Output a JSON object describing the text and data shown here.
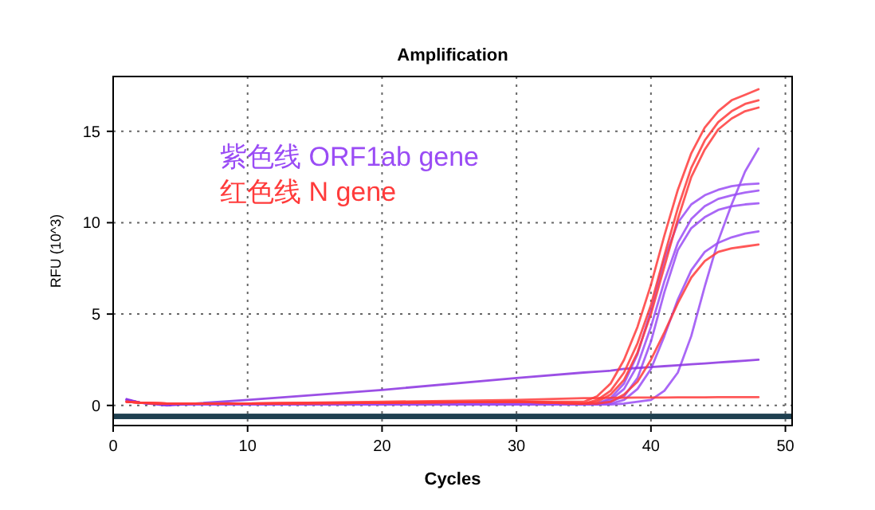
{
  "chart_data": {
    "type": "line",
    "title": "Amplification",
    "xlabel": "Cycles",
    "ylabel": "RFU (10^3)",
    "xlim": [
      0,
      50.5
    ],
    "ylim": [
      -1.1,
      18
    ],
    "xticks": [
      0,
      10,
      20,
      30,
      40,
      50
    ],
    "yticks": [
      0,
      5,
      10,
      15
    ],
    "grid": true,
    "marker": "none",
    "line_style": "solid",
    "legend": "top left",
    "x": [
      1,
      2,
      4,
      10,
      20,
      30,
      35,
      36,
      37,
      38,
      39,
      40,
      41,
      42,
      43,
      44,
      45,
      46,
      47,
      48
    ],
    "bands": [
      {
        "axis": "y",
        "from": -0.75,
        "to": -0.45,
        "color": "#1f4050"
      }
    ],
    "series": [
      {
        "name": "紫色线 ORF1ab gene",
        "color": "#9a4cf5",
        "values": [
          0.3,
          0.15,
          0.05,
          0.05,
          0.05,
          0.05,
          0.05,
          0.1,
          0.4,
          1.2,
          2.8,
          5.2,
          8.0,
          10.0,
          11.0,
          11.5,
          11.8,
          12.0,
          12.1,
          12.14
        ]
      },
      {
        "color": "#9a4cf5",
        "values": [
          0.3,
          0.15,
          0.05,
          0.05,
          0.05,
          0.05,
          0.05,
          0.1,
          0.3,
          0.9,
          2.2,
          4.3,
          6.8,
          8.9,
          10.2,
          10.9,
          11.3,
          11.5,
          11.65,
          11.76
        ]
      },
      {
        "color": "#9a4cf5",
        "values": [
          0.3,
          0.15,
          0.05,
          0.05,
          0.05,
          0.05,
          0.05,
          0.05,
          0.2,
          0.5,
          1.5,
          3.5,
          6.2,
          8.5,
          9.7,
          10.3,
          10.7,
          10.9,
          11.0,
          11.06
        ]
      },
      {
        "color": "#9a4cf5",
        "values": [
          0.3,
          0.15,
          0.05,
          0.05,
          0.05,
          0.05,
          0.05,
          0.05,
          0.1,
          0.3,
          0.9,
          2.0,
          3.8,
          5.8,
          7.4,
          8.4,
          8.9,
          9.2,
          9.4,
          9.52
        ]
      },
      {
        "color": "#9a4cf5",
        "values": [
          0.3,
          0.15,
          0.05,
          0.05,
          0.05,
          0.05,
          0.05,
          0.05,
          0.05,
          0.1,
          0.2,
          0.3,
          0.8,
          1.8,
          3.8,
          6.5,
          9.0,
          11.0,
          12.8,
          14.06
        ]
      },
      {
        "color": "#8a30e0",
        "values": [
          0.35,
          0.15,
          0.0,
          0.3,
          0.85,
          1.5,
          1.8,
          1.85,
          1.9,
          2.0,
          2.05,
          2.1,
          2.15,
          2.2,
          2.25,
          2.3,
          2.35,
          2.4,
          2.45,
          2.5
        ]
      },
      {
        "name": "红色线 N gene",
        "color": "#ff3b3b",
        "values": [
          0.2,
          0.15,
          0.1,
          0.1,
          0.15,
          0.2,
          0.2,
          0.5,
          1.2,
          2.5,
          4.3,
          6.6,
          9.3,
          11.8,
          13.8,
          15.2,
          16.1,
          16.7,
          17.0,
          17.3
        ]
      },
      {
        "color": "#ff3b3b",
        "values": [
          0.2,
          0.15,
          0.1,
          0.1,
          0.15,
          0.2,
          0.1,
          0.3,
          0.8,
          1.8,
          3.4,
          5.5,
          8.2,
          10.8,
          13.0,
          14.5,
          15.5,
          16.1,
          16.5,
          16.7
        ]
      },
      {
        "color": "#ff3b3b",
        "values": [
          0.2,
          0.15,
          0.1,
          0.1,
          0.15,
          0.2,
          0.1,
          0.2,
          0.6,
          1.4,
          2.9,
          5.0,
          7.6,
          10.2,
          12.5,
          14.0,
          15.1,
          15.7,
          16.1,
          16.3
        ]
      },
      {
        "color": "#ff3b3b",
        "values": [
          0.2,
          0.15,
          0.1,
          0.1,
          0.15,
          0.2,
          0.1,
          0.1,
          0.2,
          0.6,
          1.3,
          2.5,
          4.0,
          5.6,
          7.0,
          7.9,
          8.4,
          8.6,
          8.7,
          8.8
        ]
      },
      {
        "color": "#ff3b3b",
        "values": [
          0.2,
          0.15,
          0.1,
          0.1,
          0.2,
          0.3,
          0.4,
          0.4,
          0.42,
          0.42,
          0.43,
          0.43,
          0.43,
          0.44,
          0.44,
          0.44,
          0.45,
          0.45,
          0.45,
          0.45
        ]
      }
    ]
  }
}
